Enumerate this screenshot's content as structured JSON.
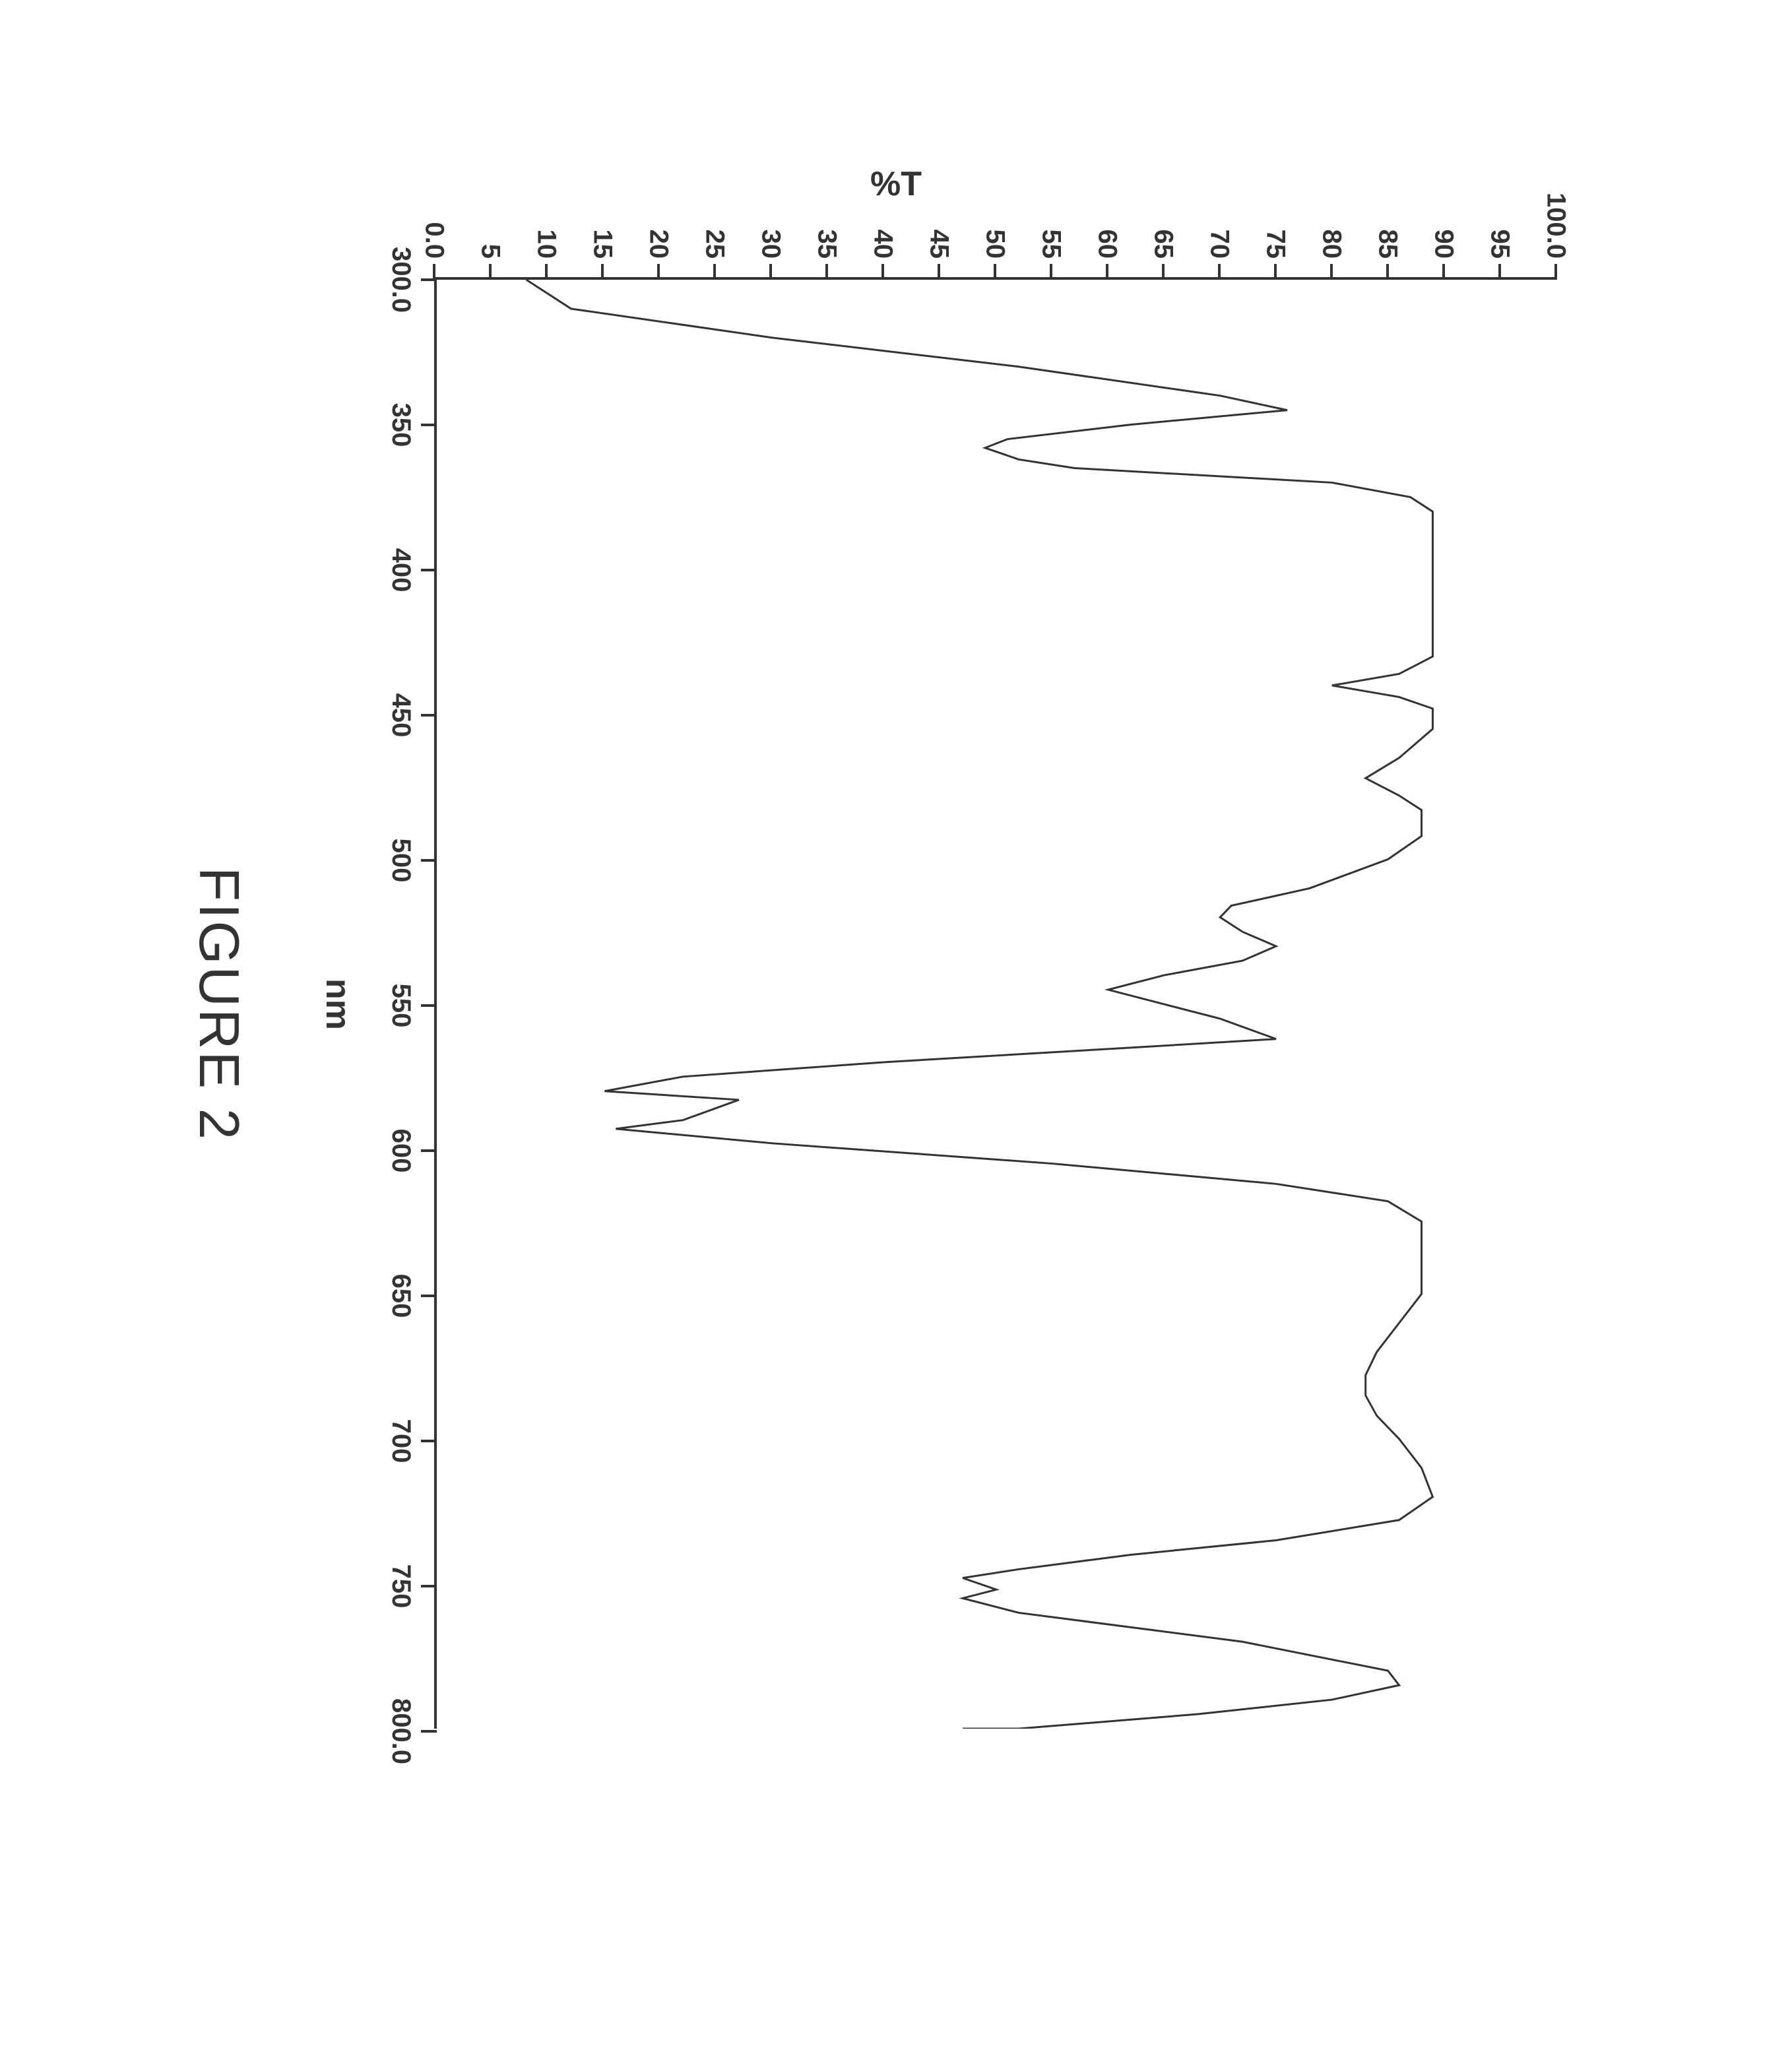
{
  "chart": {
    "type": "line",
    "title": "",
    "figure_name": "FIGURE 2",
    "x_axis": {
      "label": "nm",
      "min": 300.0,
      "max": 800.0,
      "ticks": [
        300.0,
        350,
        400,
        450,
        500,
        550,
        600,
        650,
        700,
        750,
        800.0
      ],
      "tick_labels": [
        "300.0",
        "350",
        "400",
        "450",
        "500",
        "550",
        "600",
        "650",
        "700",
        "750",
        "800.0"
      ],
      "label_fontsize": 52,
      "tick_fontsize": 40
    },
    "y_axis": {
      "label": "%T",
      "min": 0.0,
      "max": 100.0,
      "ticks": [
        0.0,
        5,
        10,
        15,
        20,
        25,
        30,
        35,
        40,
        45,
        50,
        55,
        60,
        65,
        70,
        75,
        80,
        85,
        90,
        95,
        100.0
      ],
      "tick_labels": [
        "0.0",
        "5",
        "10",
        "15",
        "20",
        "25",
        "30",
        "35",
        "40",
        "45",
        "50",
        "55",
        "60",
        "65",
        "70",
        "75",
        "80",
        "85",
        "90",
        "95",
        "100.0"
      ],
      "label_fontsize": 52,
      "tick_fontsize": 40
    },
    "series": {
      "color": "#333333",
      "line_width": 3,
      "points": [
        {
          "x": 300.0,
          "y": 8
        },
        {
          "x": 310,
          "y": 12
        },
        {
          "x": 320,
          "y": 30
        },
        {
          "x": 330,
          "y": 52
        },
        {
          "x": 340,
          "y": 70
        },
        {
          "x": 345,
          "y": 76
        },
        {
          "x": 350,
          "y": 62
        },
        {
          "x": 355,
          "y": 51
        },
        {
          "x": 358,
          "y": 49
        },
        {
          "x": 362,
          "y": 52
        },
        {
          "x": 365,
          "y": 57
        },
        {
          "x": 370,
          "y": 80
        },
        {
          "x": 375,
          "y": 87
        },
        {
          "x": 380,
          "y": 89
        },
        {
          "x": 400,
          "y": 89
        },
        {
          "x": 420,
          "y": 89
        },
        {
          "x": 430,
          "y": 89
        },
        {
          "x": 436,
          "y": 86
        },
        {
          "x": 440,
          "y": 80
        },
        {
          "x": 444,
          "y": 86
        },
        {
          "x": 448,
          "y": 89
        },
        {
          "x": 455,
          "y": 89
        },
        {
          "x": 465,
          "y": 86
        },
        {
          "x": 472,
          "y": 83
        },
        {
          "x": 478,
          "y": 86
        },
        {
          "x": 483,
          "y": 88
        },
        {
          "x": 492,
          "y": 88
        },
        {
          "x": 500,
          "y": 85
        },
        {
          "x": 510,
          "y": 78
        },
        {
          "x": 516,
          "y": 71
        },
        {
          "x": 520,
          "y": 70
        },
        {
          "x": 525,
          "y": 72
        },
        {
          "x": 530,
          "y": 75
        },
        {
          "x": 535,
          "y": 72
        },
        {
          "x": 540,
          "y": 65
        },
        {
          "x": 545,
          "y": 60
        },
        {
          "x": 555,
          "y": 70
        },
        {
          "x": 562,
          "y": 75
        },
        {
          "x": 565,
          "y": 62
        },
        {
          "x": 570,
          "y": 40
        },
        {
          "x": 575,
          "y": 22
        },
        {
          "x": 580,
          "y": 15
        },
        {
          "x": 583,
          "y": 27
        },
        {
          "x": 590,
          "y": 22
        },
        {
          "x": 593,
          "y": 16
        },
        {
          "x": 598,
          "y": 30
        },
        {
          "x": 605,
          "y": 55
        },
        {
          "x": 612,
          "y": 75
        },
        {
          "x": 618,
          "y": 85
        },
        {
          "x": 625,
          "y": 88
        },
        {
          "x": 633,
          "y": 88
        },
        {
          "x": 640,
          "y": 88
        },
        {
          "x": 650,
          "y": 88
        },
        {
          "x": 660,
          "y": 86
        },
        {
          "x": 670,
          "y": 84
        },
        {
          "x": 678,
          "y": 83
        },
        {
          "x": 685,
          "y": 83
        },
        {
          "x": 692,
          "y": 84
        },
        {
          "x": 700,
          "y": 86
        },
        {
          "x": 710,
          "y": 88
        },
        {
          "x": 720,
          "y": 89
        },
        {
          "x": 728,
          "y": 86
        },
        {
          "x": 735,
          "y": 75
        },
        {
          "x": 740,
          "y": 62
        },
        {
          "x": 745,
          "y": 52
        },
        {
          "x": 748,
          "y": 47
        },
        {
          "x": 752,
          "y": 50
        },
        {
          "x": 755,
          "y": 47
        },
        {
          "x": 760,
          "y": 52
        },
        {
          "x": 770,
          "y": 72
        },
        {
          "x": 780,
          "y": 85
        },
        {
          "x": 785,
          "y": 86
        },
        {
          "x": 790,
          "y": 80
        },
        {
          "x": 795,
          "y": 68
        },
        {
          "x": 800,
          "y": 52
        },
        {
          "x": 800,
          "y": 47
        }
      ]
    },
    "style": {
      "background_color": "#ffffff",
      "axis_color": "#333333",
      "axis_width": 4,
      "tick_length": 24,
      "tick_width": 4
    }
  }
}
